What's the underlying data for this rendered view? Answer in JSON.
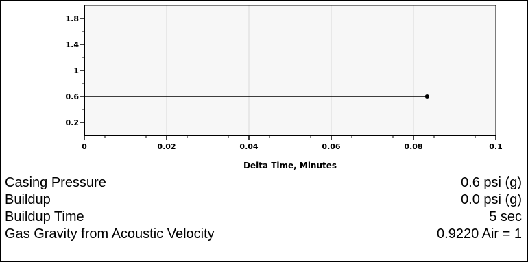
{
  "chart_data": {
    "type": "line",
    "xlabel": "Delta Time, Minutes",
    "ylabel": "",
    "xlim": [
      0,
      0.1
    ],
    "ylim": [
      0,
      2.0
    ],
    "x_ticks": [
      "0",
      "0.02",
      "0.04",
      "0.06",
      "0.08",
      "0.1"
    ],
    "y_ticks": [
      "0.2",
      "0.6",
      "1",
      "1.4",
      "1.8"
    ],
    "grid": true,
    "series": [
      {
        "x": [
          0,
          0.0833
        ],
        "y": [
          0.6,
          0.6
        ]
      }
    ]
  },
  "info": [
    {
      "label": "Casing Pressure",
      "value": "0.6 psi (g)"
    },
    {
      "label": "Buildup",
      "value": "0.0 psi (g)"
    },
    {
      "label": "Buildup Time",
      "value": "5 sec"
    },
    {
      "label": "Gas Gravity from Acoustic Velocity",
      "value": "0.9220 Air = 1"
    }
  ],
  "colors": {
    "plot_background": "#f7f7f7",
    "grid": "#d8d8d8",
    "line": "#000000"
  }
}
